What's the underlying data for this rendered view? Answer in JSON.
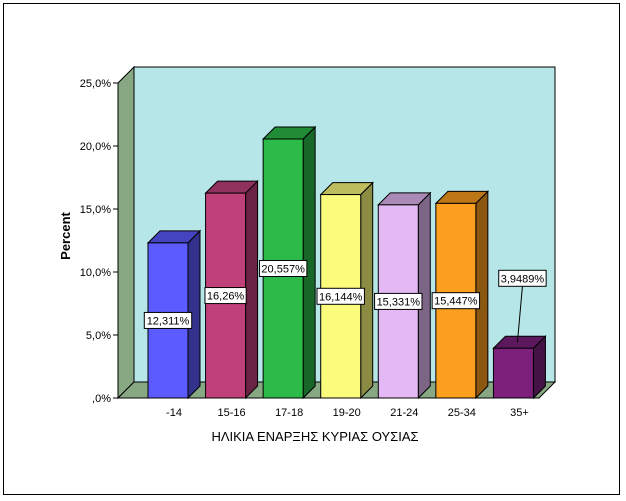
{
  "chart_data": {
    "type": "bar",
    "categories": [
      "-14",
      "15-16",
      "17-18",
      "19-20",
      "21-24",
      "25-34",
      "35+"
    ],
    "values": [
      12.311,
      16.26,
      20.557,
      16.144,
      15.331,
      15.447,
      3.9489
    ],
    "data_labels": [
      "12,311%",
      "16,26%",
      "20,557%",
      "16,144%",
      "15,331%",
      "15,447%",
      "3,9489%"
    ],
    "ylabel": "Percent",
    "xlabel": "ΗΛΙΚΙΑ ΕΝΑΡΞΗΣ ΚΥΡΙΑΣ ΟΥΣΙΑΣ",
    "ylim": [
      0,
      25
    ],
    "yticks": [
      0,
      5,
      10,
      15,
      20,
      25
    ],
    "ytick_labels": [
      ",0%",
      "5,0%",
      "10,0%",
      "15,0%",
      "20,0%",
      "25,0%"
    ],
    "bar_colors": [
      "#5b5bff",
      "#c0407a",
      "#2cba48",
      "#fcfc7c",
      "#e4b8f4",
      "#fc9e1e",
      "#7c207c"
    ],
    "background_color": "#b6e6e8",
    "wall_color": "#88a884",
    "grid": false,
    "legend": "none",
    "style": "3d"
  }
}
